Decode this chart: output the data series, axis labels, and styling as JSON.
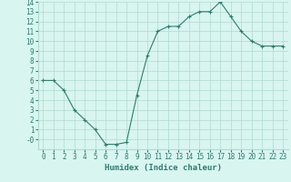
{
  "x": [
    0,
    1,
    2,
    3,
    4,
    5,
    6,
    7,
    8,
    9,
    10,
    11,
    12,
    13,
    14,
    15,
    16,
    17,
    18,
    19,
    20,
    21,
    22,
    23
  ],
  "y": [
    6,
    6,
    5,
    3,
    2,
    1,
    -0.5,
    -0.5,
    -0.3,
    4.5,
    8.5,
    11,
    11.5,
    11.5,
    12.5,
    13,
    13,
    14,
    12.5,
    11,
    10,
    9.5,
    9.5,
    9.5
  ],
  "title": "",
  "xlabel": "Humidex (Indice chaleur)",
  "ylabel": "",
  "xlim": [
    -0.5,
    23.5
  ],
  "ylim": [
    -1,
    14
  ],
  "yticks": [
    0,
    1,
    2,
    3,
    4,
    5,
    6,
    7,
    8,
    9,
    10,
    11,
    12,
    13,
    14
  ],
  "ytick_labels": [
    "-0",
    "1",
    "2",
    "3",
    "4",
    "5",
    "6",
    "7",
    "8",
    "9",
    "10",
    "11",
    "12",
    "13",
    "14"
  ],
  "xticks": [
    0,
    1,
    2,
    3,
    4,
    5,
    6,
    7,
    8,
    9,
    10,
    11,
    12,
    13,
    14,
    15,
    16,
    17,
    18,
    19,
    20,
    21,
    22,
    23
  ],
  "line_color": "#2e7d6e",
  "marker": "+",
  "bg_color": "#d8f5f0",
  "grid_color": "#b0d9d0",
  "xlabel_fontsize": 6.5,
  "tick_fontsize": 5.5
}
